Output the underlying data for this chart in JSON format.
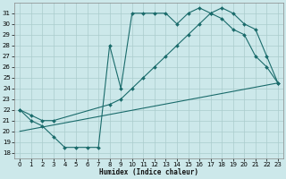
{
  "xlabel": "Humidex (Indice chaleur)",
  "bg_color": "#cce8ea",
  "grid_color": "#aacccc",
  "line_color": "#1a6b6b",
  "xlim": [
    -0.5,
    23.5
  ],
  "ylim": [
    17.5,
    32.0
  ],
  "yticks": [
    18,
    19,
    20,
    21,
    22,
    23,
    24,
    25,
    26,
    27,
    28,
    29,
    30,
    31
  ],
  "xticks": [
    0,
    1,
    2,
    3,
    4,
    5,
    6,
    7,
    8,
    9,
    10,
    11,
    12,
    13,
    14,
    15,
    16,
    17,
    18,
    19,
    20,
    21,
    22,
    23
  ],
  "line1_x": [
    0,
    1,
    2,
    3,
    4,
    5,
    6,
    7,
    8,
    9,
    10,
    11,
    12,
    13,
    14,
    15,
    16,
    17,
    18,
    19,
    20,
    21,
    22,
    23
  ],
  "line1_y": [
    22.0,
    21.0,
    20.5,
    19.5,
    18.5,
    18.5,
    18.5,
    18.5,
    28.0,
    24.0,
    31.0,
    31.0,
    31.0,
    31.0,
    30.0,
    31.0,
    31.5,
    31.0,
    30.5,
    29.5,
    29.0,
    27.0,
    26.0,
    24.5
  ],
  "line2_x": [
    0,
    1,
    2,
    3,
    8,
    9,
    10,
    11,
    12,
    13,
    14,
    15,
    16,
    17,
    18,
    19,
    20,
    21,
    22,
    23
  ],
  "line2_y": [
    22.0,
    21.5,
    21.0,
    21.0,
    22.5,
    23.0,
    24.0,
    25.0,
    26.0,
    27.0,
    28.0,
    29.0,
    30.0,
    31.0,
    31.5,
    31.0,
    30.0,
    29.5,
    27.0,
    24.5
  ],
  "line3_x": [
    0,
    23
  ],
  "line3_y": [
    20.0,
    24.5
  ]
}
